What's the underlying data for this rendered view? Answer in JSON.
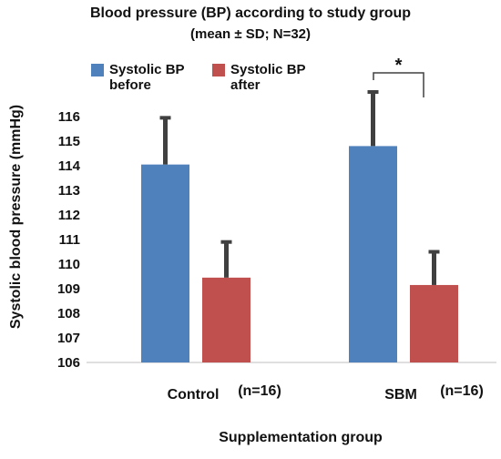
{
  "chart_data": {
    "type": "bar",
    "title": "Blood pressure (BP) according to study group",
    "subtitle": "(mean ± SD; N=32)",
    "xlabel": "Supplementation group",
    "ylabel": "Systolic blood pressure (mmHg)",
    "ylim": [
      106,
      116.5
    ],
    "yticks": [
      106,
      107,
      108,
      109,
      110,
      111,
      112,
      113,
      114,
      115,
      116
    ],
    "grid": false,
    "legend_position": "top",
    "categories": [
      "Control",
      "SBM"
    ],
    "category_notes": [
      "(n=16)",
      "(n=16)"
    ],
    "series": [
      {
        "name": "Systolic BP before",
        "color": "#4f81bd",
        "values": [
          114.05,
          114.8
        ],
        "errors": [
          1.9,
          2.2
        ]
      },
      {
        "name": "Systolic BP after",
        "color": "#c0504d",
        "values": [
          109.45,
          109.15
        ],
        "errors": [
          1.45,
          1.35
        ]
      }
    ],
    "annotation": {
      "text": "*",
      "between_category": "SBM"
    }
  }
}
